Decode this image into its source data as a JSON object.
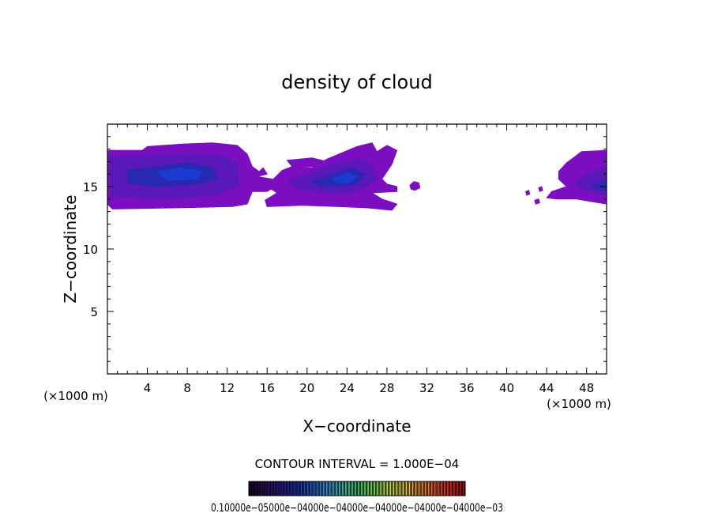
{
  "chart_data": {
    "type": "heatmap",
    "title": "density of cloud",
    "xlabel": "X−coordinate",
    "ylabel": "Z−coordinate",
    "x_unit_left": "(×1000 m)",
    "x_unit_right": "(×1000 m)",
    "xlim": [
      0,
      50
    ],
    "ylim": [
      0,
      20
    ],
    "x_ticks": [
      4,
      8,
      12,
      16,
      20,
      24,
      28,
      32,
      36,
      40,
      44,
      48
    ],
    "y_ticks": [
      5,
      10,
      15
    ],
    "contour_interval_label": "CONTOUR INTERVAL = 1.000E−04",
    "colorbar": {
      "ticklabels": [
        "0.10000",
        "e−05",
        "00e−04",
        "00e−04",
        "00e−04",
        "00e−04",
        "00e−04",
        "00e−03"
      ],
      "ticklabels_text": "0.10000e−05000e−04000e−04000e−04000e−04000e−04000e−03",
      "colors": [
        "#1a0028",
        "#2a0060",
        "#1f0a9a",
        "#1530c8",
        "#1560e0",
        "#2a90e8",
        "#33c0c0",
        "#40d07a",
        "#70d850",
        "#b8d850",
        "#e0d060",
        "#e8a040",
        "#e06030",
        "#d03020",
        "#b01010"
      ]
    },
    "regions": [
      {
        "name": "cloud-left",
        "polygon": [
          [
            0,
            17.9
          ],
          [
            3.5,
            17.9
          ],
          [
            4.0,
            18.2
          ],
          [
            7.5,
            18.4
          ],
          [
            10.5,
            18.5
          ],
          [
            13.0,
            18.3
          ],
          [
            14.0,
            17.6
          ],
          [
            14.5,
            16.6
          ],
          [
            15.2,
            16.2
          ],
          [
            15.6,
            16.5
          ],
          [
            16.0,
            16.0
          ],
          [
            15.0,
            15.8
          ],
          [
            16.5,
            15.6
          ],
          [
            17.0,
            15.1
          ],
          [
            16.0,
            14.6
          ],
          [
            14.5,
            14.6
          ],
          [
            14.0,
            13.6
          ],
          [
            12.5,
            13.4
          ],
          [
            7.0,
            13.3
          ],
          [
            0.5,
            13.2
          ],
          [
            0,
            13.6
          ]
        ],
        "fill": "#7a0ec0"
      },
      {
        "name": "cloud-left-mid",
        "polygon": [
          [
            0.2,
            17.4
          ],
          [
            4.0,
            17.5
          ],
          [
            8.0,
            17.6
          ],
          [
            11.5,
            17.5
          ],
          [
            13.0,
            16.8
          ],
          [
            13.2,
            15.2
          ],
          [
            11.0,
            14.3
          ],
          [
            6.0,
            14.0
          ],
          [
            0.4,
            14.2
          ]
        ],
        "fill": "#5a18b8"
      },
      {
        "name": "cloud-left-core",
        "polygon": [
          [
            2.0,
            16.3
          ],
          [
            5.0,
            16.6
          ],
          [
            8.0,
            16.9
          ],
          [
            10.5,
            16.5
          ],
          [
            11.0,
            15.6
          ],
          [
            9.0,
            15.2
          ],
          [
            5.0,
            15.0
          ],
          [
            2.0,
            15.3
          ]
        ],
        "fill": "#2828b0"
      },
      {
        "name": "cloud-left-inner",
        "polygon": [
          [
            5.0,
            16.2
          ],
          [
            7.5,
            16.5
          ],
          [
            9.5,
            16.2
          ],
          [
            9.0,
            15.6
          ],
          [
            6.0,
            15.5
          ]
        ],
        "fill": "#1a3ad0"
      },
      {
        "name": "cloud-mid",
        "polygon": [
          [
            16.5,
            15.5
          ],
          [
            17.5,
            16.3
          ],
          [
            18.5,
            16.6
          ],
          [
            20.5,
            16.5
          ],
          [
            22.0,
            17.2
          ],
          [
            25.0,
            18.2
          ],
          [
            26.5,
            18.5
          ],
          [
            27.0,
            17.8
          ],
          [
            28.0,
            18.3
          ],
          [
            29.0,
            17.9
          ],
          [
            28.5,
            16.8
          ],
          [
            27.5,
            15.6
          ],
          [
            28.0,
            15.2
          ],
          [
            29.0,
            15.0
          ],
          [
            29.0,
            14.6
          ],
          [
            26.5,
            14.5
          ],
          [
            27.5,
            14.0
          ],
          [
            29.0,
            13.6
          ],
          [
            28.5,
            13.1
          ],
          [
            26.0,
            13.3
          ],
          [
            23.0,
            13.4
          ],
          [
            19.5,
            13.5
          ],
          [
            16.0,
            13.4
          ],
          [
            15.8,
            13.9
          ],
          [
            17.0,
            14.5
          ],
          [
            16.2,
            14.9
          ]
        ],
        "fill": "#7a0ec0"
      },
      {
        "name": "cloud-mid-blob",
        "polygon": [
          [
            18.0,
            17.1
          ],
          [
            20.5,
            17.3
          ],
          [
            22.0,
            17.0
          ],
          [
            21.5,
            16.6
          ],
          [
            18.5,
            16.6
          ]
        ],
        "fill": "#7a0ec0"
      },
      {
        "name": "cloud-mid-mid",
        "polygon": [
          [
            18.0,
            15.5
          ],
          [
            20.0,
            16.0
          ],
          [
            22.5,
            16.8
          ],
          [
            25.0,
            17.2
          ],
          [
            26.5,
            16.8
          ],
          [
            27.0,
            15.6
          ],
          [
            25.5,
            14.8
          ],
          [
            23.5,
            14.4
          ],
          [
            21.0,
            14.6
          ],
          [
            19.0,
            14.9
          ]
        ],
        "fill": "#5a18b8"
      },
      {
        "name": "cloud-mid-core",
        "polygon": [
          [
            20.5,
            15.4
          ],
          [
            22.5,
            16.0
          ],
          [
            24.5,
            16.5
          ],
          [
            25.8,
            16.0
          ],
          [
            25.0,
            15.2
          ],
          [
            23.0,
            15.0
          ],
          [
            21.5,
            15.0
          ]
        ],
        "fill": "#2828b0"
      },
      {
        "name": "cloud-mid-inner",
        "polygon": [
          [
            22.5,
            15.6
          ],
          [
            24.0,
            16.1
          ],
          [
            25.0,
            15.8
          ],
          [
            24.2,
            15.3
          ],
          [
            23.0,
            15.3
          ]
        ],
        "fill": "#1a3ad0"
      },
      {
        "name": "cloud-blob-small",
        "polygon": [
          [
            30.3,
            15.1
          ],
          [
            30.7,
            15.4
          ],
          [
            31.2,
            15.3
          ],
          [
            31.3,
            14.9
          ],
          [
            30.8,
            14.7
          ],
          [
            30.4,
            14.8
          ]
        ],
        "fill": "#7a0ec0"
      },
      {
        "name": "cloud-right",
        "polygon": [
          [
            45.2,
            16.2
          ],
          [
            46.0,
            16.9
          ],
          [
            47.0,
            17.5
          ],
          [
            47.5,
            17.8
          ],
          [
            50,
            17.9
          ],
          [
            50,
            13.6
          ],
          [
            48.5,
            13.8
          ],
          [
            47.0,
            14.0
          ],
          [
            45.0,
            14.0
          ],
          [
            44.0,
            14.1
          ],
          [
            44.5,
            14.6
          ],
          [
            46.0,
            15.0
          ],
          [
            45.2,
            15.6
          ]
        ],
        "fill": "#7a0ec0"
      },
      {
        "name": "cloud-right-mid",
        "polygon": [
          [
            46.8,
            15.2
          ],
          [
            48.0,
            16.0
          ],
          [
            50,
            16.6
          ],
          [
            50,
            14.3
          ],
          [
            48.5,
            14.6
          ],
          [
            47.2,
            14.9
          ]
        ],
        "fill": "#5a18b8"
      },
      {
        "name": "cloud-right-core",
        "polygon": [
          [
            48.5,
            15.0
          ],
          [
            50,
            15.6
          ],
          [
            50,
            14.7
          ],
          [
            49.0,
            14.8
          ]
        ],
        "fill": "#2828b0"
      },
      {
        "name": "cloud-dot-1",
        "polygon": [
          [
            41.9,
            14.6
          ],
          [
            42.2,
            14.7
          ],
          [
            42.3,
            14.4
          ],
          [
            42.0,
            14.3
          ]
        ],
        "fill": "#7a0ec0"
      },
      {
        "name": "cloud-dot-2",
        "polygon": [
          [
            43.2,
            14.9
          ],
          [
            43.5,
            15.0
          ],
          [
            43.6,
            14.7
          ],
          [
            43.3,
            14.6
          ]
        ],
        "fill": "#7a0ec0"
      },
      {
        "name": "cloud-dot-3",
        "polygon": [
          [
            42.8,
            13.9
          ],
          [
            43.2,
            14.0
          ],
          [
            43.3,
            13.7
          ],
          [
            42.9,
            13.6
          ]
        ],
        "fill": "#7a0ec0"
      }
    ]
  }
}
